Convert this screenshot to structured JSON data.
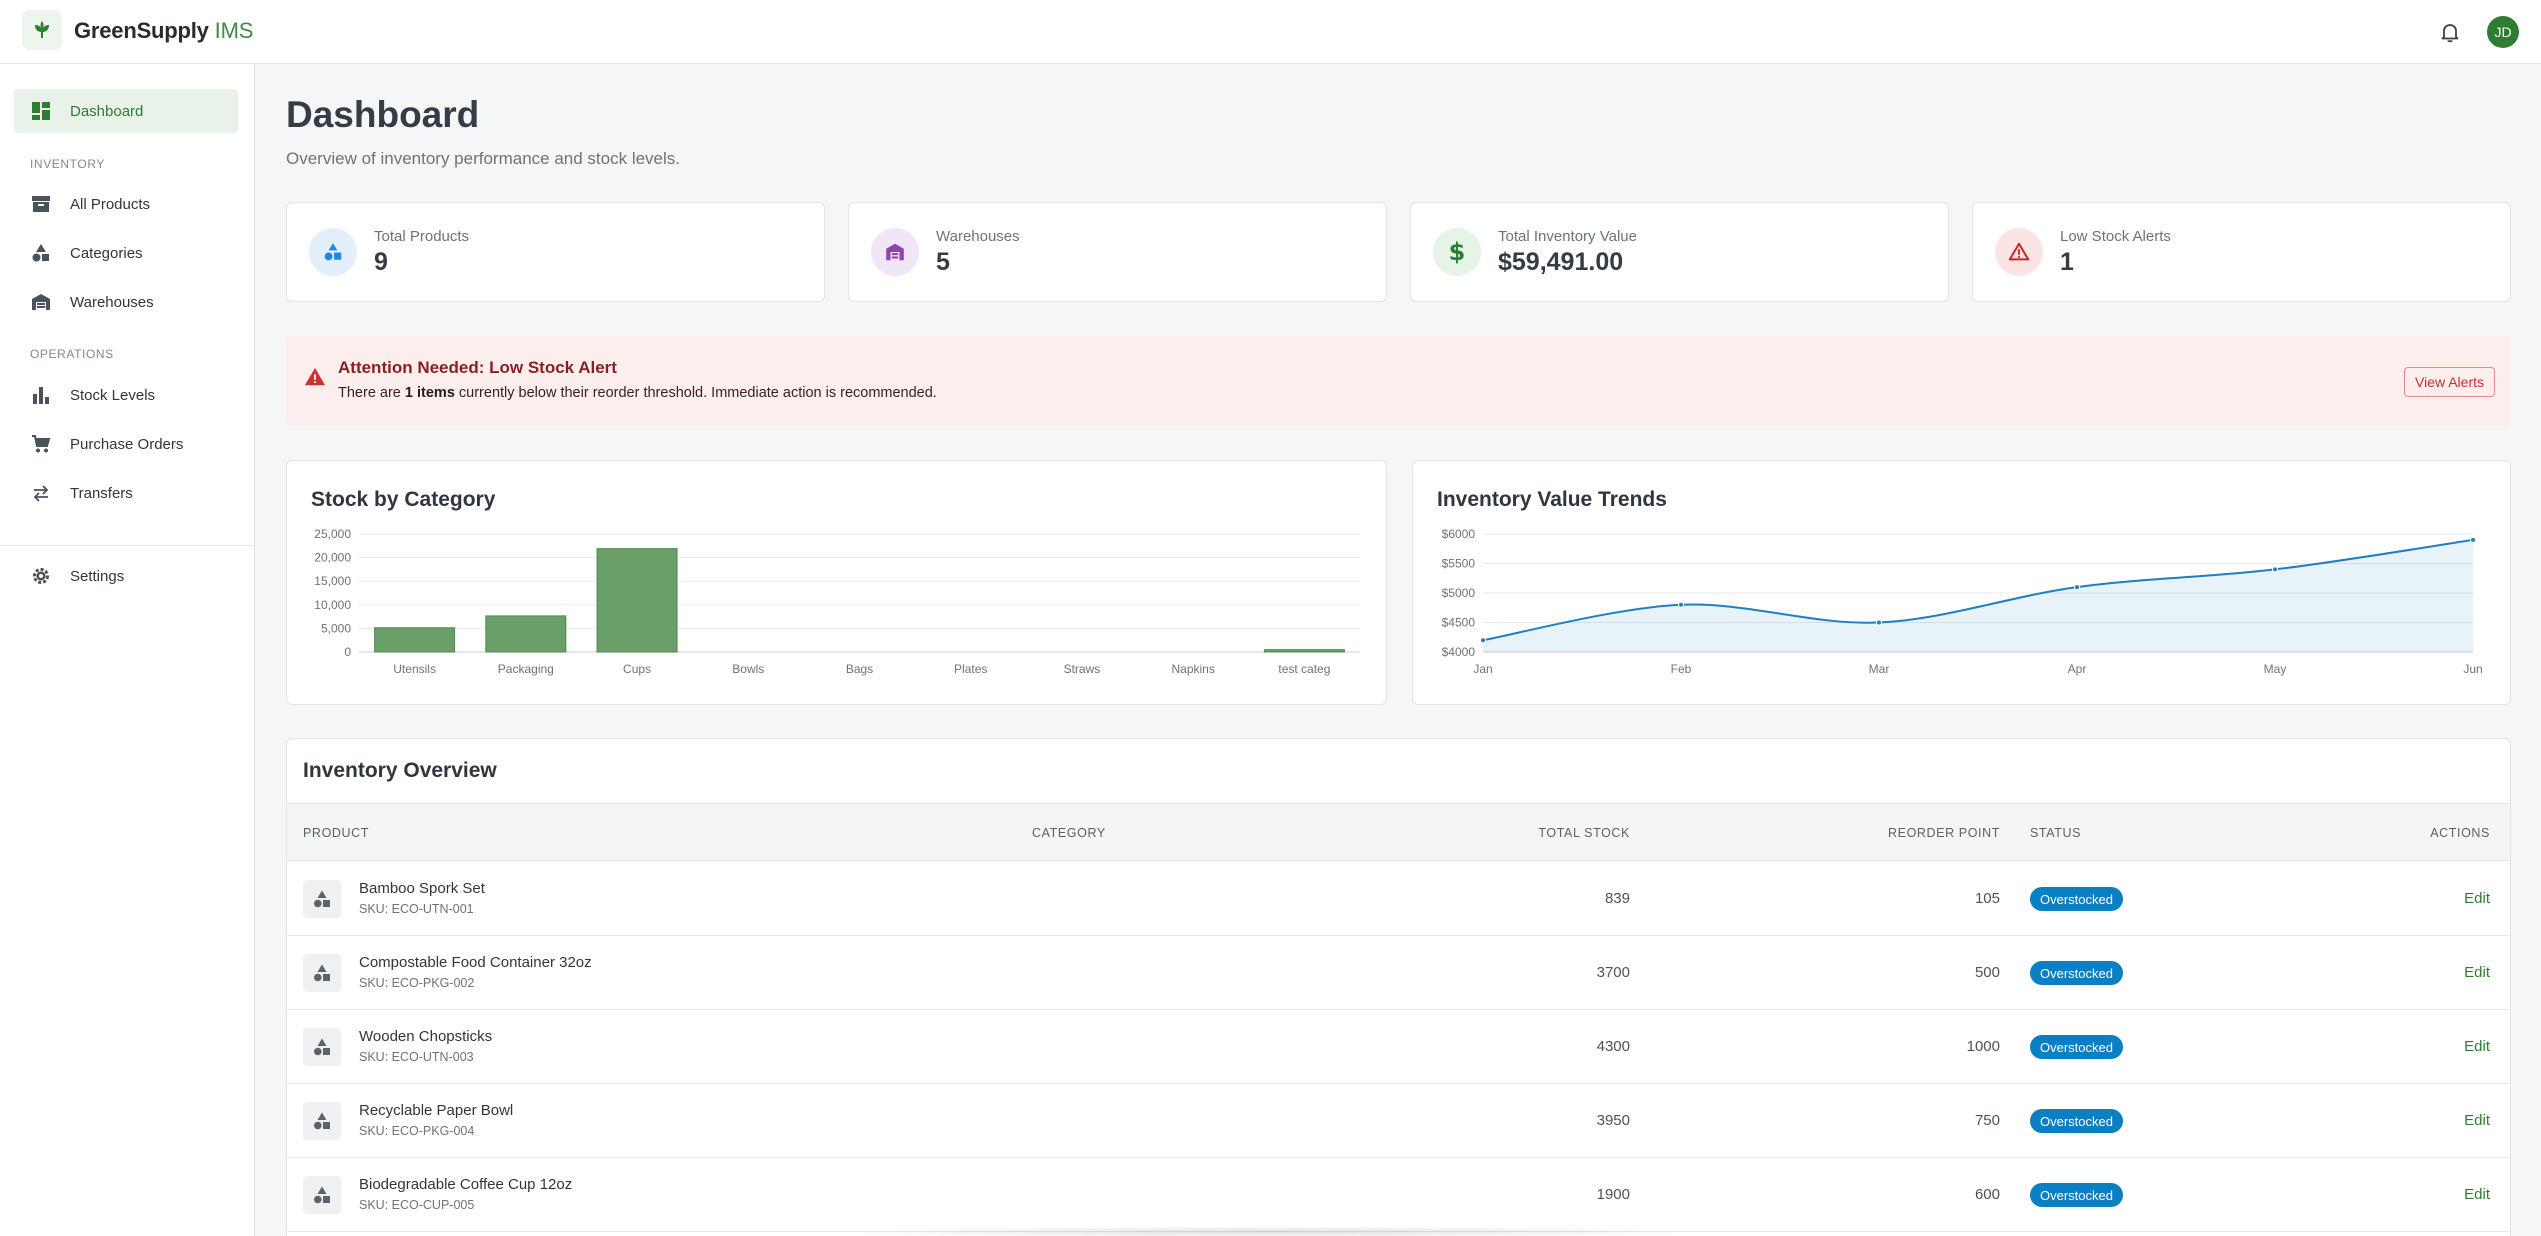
{
  "app": {
    "brand_main": "GreenSupply",
    "brand_accent": "IMS",
    "avatar_initials": "JD"
  },
  "sidebar": {
    "dashboard": "Dashboard",
    "section_inventory": "INVENTORY",
    "all_products": "All Products",
    "categories": "Categories",
    "warehouses": "Warehouses",
    "section_operations": "OPERATIONS",
    "stock_levels": "Stock Levels",
    "purchase_orders": "Purchase Orders",
    "transfers": "Transfers",
    "settings": "Settings"
  },
  "header": {
    "title": "Dashboard",
    "subtitle": "Overview of inventory performance and stock levels."
  },
  "stats": [
    {
      "label": "Total Products",
      "value": "9",
      "icon": "shapes-icon",
      "color": "#1e88e5"
    },
    {
      "label": "Warehouses",
      "value": "5",
      "icon": "warehouse-icon",
      "color": "#8e44ad"
    },
    {
      "label": "Total Inventory Value",
      "value": "$59,491.00",
      "icon": "dollar-icon",
      "color": "#2e7d32"
    },
    {
      "label": "Low Stock Alerts",
      "value": "1",
      "icon": "warning-icon",
      "color": "#c62828"
    }
  ],
  "alert": {
    "title": "Attention Needed: Low Stock Alert",
    "msg_pre": "There are ",
    "msg_bold": "1 items",
    "msg_post": " currently below their reorder threshold. Immediate action is recommended.",
    "button": "View Alerts"
  },
  "charts": {
    "stock_title": "Stock by Category",
    "trend_title": "Inventory Value Trends"
  },
  "chart_data": [
    {
      "type": "bar",
      "title": "Stock by Category",
      "categories": [
        "Utensils",
        "Packaging",
        "Cups",
        "Bowls",
        "Bags",
        "Plates",
        "Straws",
        "Napkins",
        "test categ"
      ],
      "values": [
        5139,
        7650,
        21900,
        0,
        0,
        0,
        0,
        0,
        500
      ],
      "ylim": [
        0,
        25000
      ],
      "yticks": [
        "25,000",
        "20,000",
        "15,000",
        "10,000",
        "5,000",
        "0"
      ],
      "bar_color": "#6a9f6a",
      "grid": true
    },
    {
      "type": "area",
      "title": "Inventory Value Trends",
      "categories": [
        "Jan",
        "Feb",
        "Mar",
        "Apr",
        "May",
        "Jun"
      ],
      "values": [
        4200,
        4800,
        4500,
        5100,
        5400,
        5900
      ],
      "ylim": [
        4000,
        6000
      ],
      "yticks": [
        "$6000",
        "$5500",
        "$5000",
        "$4500",
        "$4000"
      ],
      "line_color": "#1f7fc0",
      "grid": true
    }
  ],
  "table": {
    "title": "Inventory Overview",
    "headers": {
      "product": "PRODUCT",
      "category": "CATEGORY",
      "total_stock": "TOTAL STOCK",
      "reorder_point": "REORDER POINT",
      "status": "STATUS",
      "actions": "ACTIONS"
    },
    "rows": [
      {
        "name": "Bamboo Spork Set",
        "sku": "SKU: ECO-UTN-001",
        "category": "",
        "stock": "839",
        "reorder": "105",
        "status": "Overstocked",
        "action": "Edit"
      },
      {
        "name": "Compostable Food Container 32oz",
        "sku": "SKU: ECO-PKG-002",
        "category": "",
        "stock": "3700",
        "reorder": "500",
        "status": "Overstocked",
        "action": "Edit"
      },
      {
        "name": "Wooden Chopsticks",
        "sku": "SKU: ECO-UTN-003",
        "category": "",
        "stock": "4300",
        "reorder": "1000",
        "status": "Overstocked",
        "action": "Edit"
      },
      {
        "name": "Recyclable Paper Bowl",
        "sku": "SKU: ECO-PKG-004",
        "category": "",
        "stock": "3950",
        "reorder": "750",
        "status": "Overstocked",
        "action": "Edit"
      },
      {
        "name": "Biodegradable Coffee Cup 12oz",
        "sku": "SKU: ECO-CUP-005",
        "category": "",
        "stock": "1900",
        "reorder": "600",
        "status": "Overstocked",
        "action": "Edit"
      }
    ]
  }
}
